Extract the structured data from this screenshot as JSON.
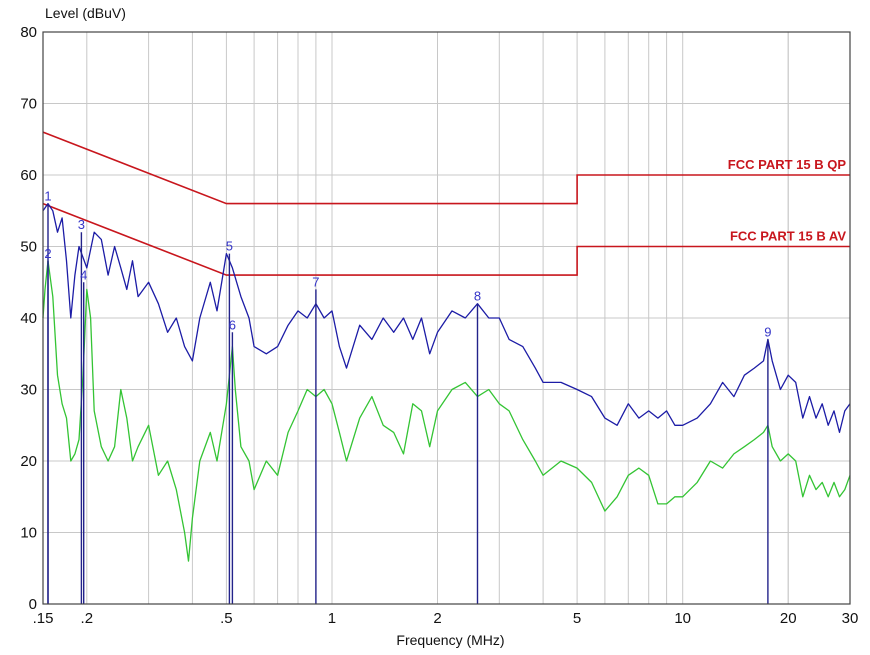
{
  "chart_data": {
    "type": "line",
    "ylabel": "Level (dBuV)",
    "xlabel": "Frequency (MHz)",
    "x_scale": "log",
    "xlim": [
      0.15,
      30
    ],
    "ylim": [
      0,
      80
    ],
    "grid": true,
    "x_ticks": [
      {
        "value": 0.15,
        "label": ".15"
      },
      {
        "value": 0.2,
        "label": ".2"
      },
      {
        "value": 0.5,
        "label": ".5"
      },
      {
        "value": 1,
        "label": "1"
      },
      {
        "value": 2,
        "label": "2"
      },
      {
        "value": 5,
        "label": "5"
      },
      {
        "value": 10,
        "label": "10"
      },
      {
        "value": 20,
        "label": "20"
      },
      {
        "value": 30,
        "label": "30"
      }
    ],
    "y_ticks": [
      {
        "value": 0,
        "label": "0"
      },
      {
        "value": 10,
        "label": "10"
      },
      {
        "value": 20,
        "label": "20"
      },
      {
        "value": 30,
        "label": "30"
      },
      {
        "value": 40,
        "label": "40"
      },
      {
        "value": 50,
        "label": "50"
      },
      {
        "value": 60,
        "label": "60"
      },
      {
        "value": 70,
        "label": "70"
      },
      {
        "value": 80,
        "label": "80"
      }
    ],
    "limit_lines": [
      {
        "name": "FCC PART 15 B QP",
        "color": "#c8161d",
        "points": [
          [
            0.15,
            66
          ],
          [
            0.5,
            56
          ],
          [
            5,
            56
          ],
          [
            5,
            60
          ],
          [
            30,
            60
          ]
        ]
      },
      {
        "name": "FCC PART 15 B AV",
        "color": "#c8161d",
        "points": [
          [
            0.15,
            56
          ],
          [
            0.5,
            46
          ],
          [
            5,
            46
          ],
          [
            5,
            50
          ],
          [
            30,
            50
          ]
        ]
      }
    ],
    "series": [
      {
        "color": "#1c1ca6",
        "points": [
          [
            0.15,
            55
          ],
          [
            0.155,
            56
          ],
          [
            0.16,
            55
          ],
          [
            0.165,
            52
          ],
          [
            0.17,
            54
          ],
          [
            0.175,
            48
          ],
          [
            0.18,
            40
          ],
          [
            0.185,
            46
          ],
          [
            0.19,
            50
          ],
          [
            0.2,
            47
          ],
          [
            0.21,
            52
          ],
          [
            0.22,
            51
          ],
          [
            0.23,
            46
          ],
          [
            0.24,
            50
          ],
          [
            0.25,
            47
          ],
          [
            0.26,
            44
          ],
          [
            0.27,
            48
          ],
          [
            0.28,
            43
          ],
          [
            0.3,
            45
          ],
          [
            0.32,
            42
          ],
          [
            0.34,
            38
          ],
          [
            0.36,
            40
          ],
          [
            0.38,
            36
          ],
          [
            0.4,
            34
          ],
          [
            0.42,
            40
          ],
          [
            0.45,
            45
          ],
          [
            0.47,
            41
          ],
          [
            0.5,
            49
          ],
          [
            0.52,
            47
          ],
          [
            0.55,
            43
          ],
          [
            0.58,
            40
          ],
          [
            0.6,
            36
          ],
          [
            0.65,
            35
          ],
          [
            0.7,
            36
          ],
          [
            0.75,
            39
          ],
          [
            0.8,
            41
          ],
          [
            0.85,
            40
          ],
          [
            0.9,
            42
          ],
          [
            0.95,
            40
          ],
          [
            1.0,
            41
          ],
          [
            1.05,
            36
          ],
          [
            1.1,
            33
          ],
          [
            1.2,
            39
          ],
          [
            1.3,
            37
          ],
          [
            1.4,
            40
          ],
          [
            1.5,
            38
          ],
          [
            1.6,
            40
          ],
          [
            1.7,
            37
          ],
          [
            1.8,
            40
          ],
          [
            1.9,
            35
          ],
          [
            2.0,
            38
          ],
          [
            2.2,
            41
          ],
          [
            2.4,
            40
          ],
          [
            2.6,
            42
          ],
          [
            2.8,
            40
          ],
          [
            3.0,
            40
          ],
          [
            3.2,
            37
          ],
          [
            3.5,
            36
          ],
          [
            3.8,
            33
          ],
          [
            4.0,
            31
          ],
          [
            4.5,
            31
          ],
          [
            5.0,
            30
          ],
          [
            5.5,
            29
          ],
          [
            6.0,
            26
          ],
          [
            6.5,
            25
          ],
          [
            7.0,
            28
          ],
          [
            7.5,
            26
          ],
          [
            8.0,
            27
          ],
          [
            8.5,
            26
          ],
          [
            9.0,
            27
          ],
          [
            9.5,
            25
          ],
          [
            10,
            25
          ],
          [
            11,
            26
          ],
          [
            12,
            28
          ],
          [
            13,
            31
          ],
          [
            14,
            29
          ],
          [
            15,
            32
          ],
          [
            16,
            33
          ],
          [
            17,
            34
          ],
          [
            17.5,
            37
          ],
          [
            18,
            34
          ],
          [
            19,
            30
          ],
          [
            20,
            32
          ],
          [
            21,
            31
          ],
          [
            22,
            26
          ],
          [
            23,
            29
          ],
          [
            24,
            26
          ],
          [
            25,
            28
          ],
          [
            26,
            25
          ],
          [
            27,
            27
          ],
          [
            28,
            24
          ],
          [
            29,
            27
          ],
          [
            30,
            28
          ]
        ]
      },
      {
        "color": "#34c434",
        "points": [
          [
            0.15,
            40
          ],
          [
            0.152,
            44
          ],
          [
            0.155,
            48
          ],
          [
            0.16,
            43
          ],
          [
            0.165,
            32
          ],
          [
            0.17,
            28
          ],
          [
            0.175,
            26
          ],
          [
            0.18,
            20
          ],
          [
            0.185,
            21
          ],
          [
            0.19,
            23
          ],
          [
            0.195,
            32
          ],
          [
            0.2,
            44
          ],
          [
            0.205,
            40
          ],
          [
            0.21,
            27
          ],
          [
            0.22,
            22
          ],
          [
            0.23,
            20
          ],
          [
            0.24,
            22
          ],
          [
            0.25,
            30
          ],
          [
            0.26,
            26
          ],
          [
            0.27,
            20
          ],
          [
            0.28,
            22
          ],
          [
            0.3,
            25
          ],
          [
            0.32,
            18
          ],
          [
            0.34,
            20
          ],
          [
            0.36,
            16
          ],
          [
            0.38,
            10
          ],
          [
            0.39,
            6
          ],
          [
            0.4,
            12
          ],
          [
            0.42,
            20
          ],
          [
            0.45,
            24
          ],
          [
            0.47,
            20
          ],
          [
            0.5,
            28
          ],
          [
            0.52,
            36
          ],
          [
            0.53,
            30
          ],
          [
            0.55,
            22
          ],
          [
            0.58,
            20
          ],
          [
            0.6,
            16
          ],
          [
            0.65,
            20
          ],
          [
            0.7,
            18
          ],
          [
            0.75,
            24
          ],
          [
            0.8,
            27
          ],
          [
            0.85,
            30
          ],
          [
            0.9,
            29
          ],
          [
            0.95,
            30
          ],
          [
            1.0,
            28
          ],
          [
            1.05,
            24
          ],
          [
            1.1,
            20
          ],
          [
            1.2,
            26
          ],
          [
            1.3,
            29
          ],
          [
            1.4,
            25
          ],
          [
            1.5,
            24
          ],
          [
            1.6,
            21
          ],
          [
            1.7,
            28
          ],
          [
            1.8,
            27
          ],
          [
            1.9,
            22
          ],
          [
            2.0,
            27
          ],
          [
            2.2,
            30
          ],
          [
            2.4,
            31
          ],
          [
            2.6,
            29
          ],
          [
            2.8,
            30
          ],
          [
            3.0,
            28
          ],
          [
            3.2,
            27
          ],
          [
            3.5,
            23
          ],
          [
            3.8,
            20
          ],
          [
            4.0,
            18
          ],
          [
            4.5,
            20
          ],
          [
            5.0,
            19
          ],
          [
            5.5,
            17
          ],
          [
            6.0,
            13
          ],
          [
            6.5,
            15
          ],
          [
            7.0,
            18
          ],
          [
            7.5,
            19
          ],
          [
            8.0,
            18
          ],
          [
            8.5,
            14
          ],
          [
            9.0,
            14
          ],
          [
            9.5,
            15
          ],
          [
            10,
            15
          ],
          [
            11,
            17
          ],
          [
            12,
            20
          ],
          [
            13,
            19
          ],
          [
            14,
            21
          ],
          [
            15,
            22
          ],
          [
            16,
            23
          ],
          [
            17,
            24
          ],
          [
            17.5,
            25
          ],
          [
            18,
            22
          ],
          [
            19,
            20
          ],
          [
            20,
            21
          ],
          [
            21,
            20
          ],
          [
            22,
            15
          ],
          [
            23,
            18
          ],
          [
            24,
            16
          ],
          [
            25,
            17
          ],
          [
            26,
            15
          ],
          [
            27,
            17
          ],
          [
            28,
            15
          ],
          [
            29,
            16
          ],
          [
            30,
            18
          ]
        ]
      }
    ],
    "markers": [
      {
        "label": "1",
        "freq": 0.155,
        "level": 56
      },
      {
        "label": "2",
        "freq": 0.155,
        "level": 48
      },
      {
        "label": "3",
        "freq": 0.193,
        "level": 52
      },
      {
        "label": "4",
        "freq": 0.196,
        "level": 45
      },
      {
        "label": "5",
        "freq": 0.51,
        "level": 49
      },
      {
        "label": "6",
        "freq": 0.52,
        "level": 38
      },
      {
        "label": "7",
        "freq": 0.9,
        "level": 44
      },
      {
        "label": "8",
        "freq": 2.6,
        "level": 42
      },
      {
        "label": "9",
        "freq": 17.5,
        "level": 37
      }
    ]
  }
}
